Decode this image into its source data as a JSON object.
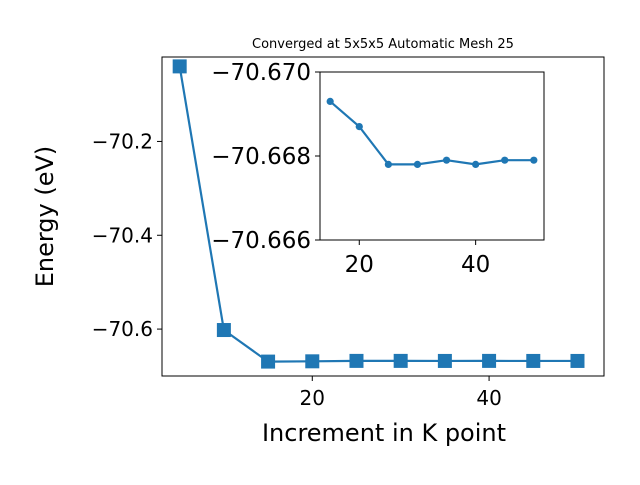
{
  "chart_data": [
    {
      "type": "line",
      "title": "Converged at 5x5x5 Automatic Mesh 25",
      "xlabel": "Increment in K point",
      "ylabel": "Energy (eV)",
      "xlim": [
        3,
        53
      ],
      "ylim": [
        -70.7,
        -70.02
      ],
      "xticks": [
        20,
        40
      ],
      "yticks": [
        -70.2,
        -70.4,
        -70.6
      ],
      "xtick_labels": [
        "20",
        "40"
      ],
      "ytick_labels": [
        "−70.2",
        "−70.4",
        "−70.6"
      ],
      "grid": false,
      "legend": "none",
      "marker": "square",
      "color": "#1f77b4",
      "x": [
        5,
        10,
        15,
        20,
        25,
        30,
        35,
        40,
        45,
        50
      ],
      "y": [
        -70.04,
        -70.602,
        -70.6693,
        -70.6687,
        -70.6678,
        -70.6678,
        -70.6679,
        -70.6678,
        -70.6679,
        -70.6679
      ]
    },
    {
      "type": "line",
      "role": "inset",
      "xlim": [
        13.25,
        51.75
      ],
      "ylim": [
        -70.666,
        -70.67
      ],
      "xticks": [
        20,
        40
      ],
      "yticks": [
        -70.67,
        -70.668,
        -70.666
      ],
      "xtick_labels": [
        "20",
        "40"
      ],
      "ytick_labels": [
        "−70.670",
        "−70.668",
        "−70.666"
      ],
      "grid": false,
      "legend": "none",
      "marker": "circle",
      "color": "#1f77b4",
      "x": [
        15,
        20,
        25,
        30,
        35,
        40,
        45,
        50
      ],
      "y": [
        -70.6693,
        -70.6687,
        -70.6678,
        -70.6678,
        -70.6679,
        -70.6678,
        -70.6679,
        -70.6679
      ]
    }
  ]
}
